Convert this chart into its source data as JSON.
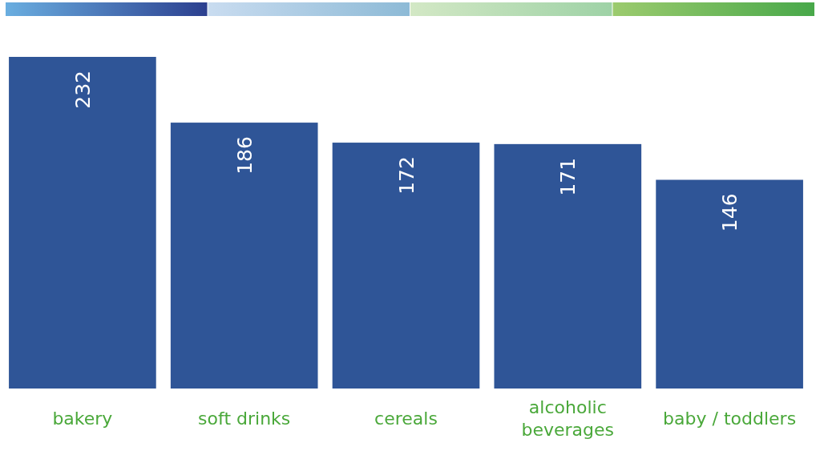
{
  "chart_data": {
    "type": "bar",
    "categories": [
      "bakery",
      "soft drinks",
      "cereals",
      "alcoholic beverages",
      "baby / toddlers"
    ],
    "values": [
      232,
      186,
      172,
      171,
      146
    ],
    "color": "#2f5597",
    "data_labels": true
  }
}
